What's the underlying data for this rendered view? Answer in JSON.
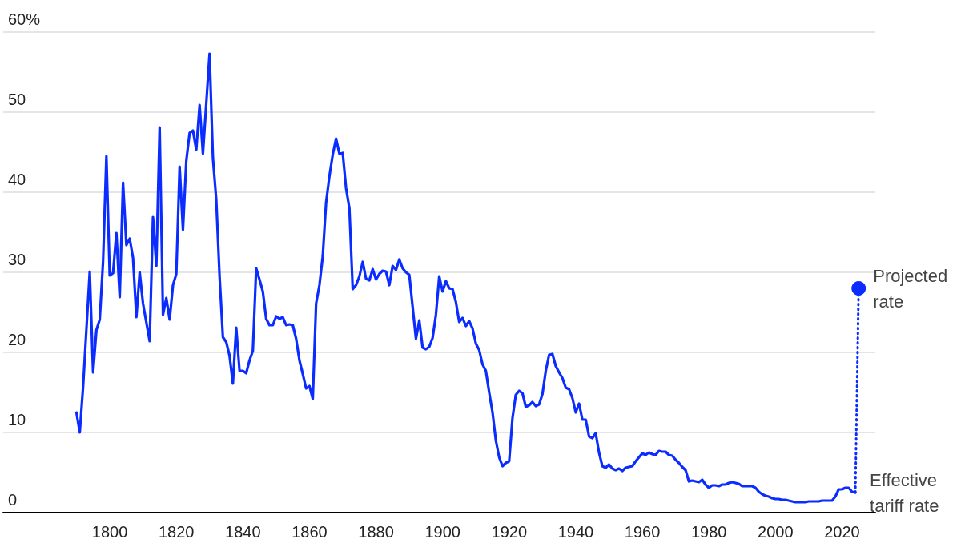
{
  "chart_data": {
    "type": "line",
    "xlim": [
      1768,
      2030
    ],
    "xticks": [
      1800,
      1820,
      1840,
      1860,
      1880,
      1900,
      1920,
      1940,
      1960,
      1980,
      2000,
      2020
    ],
    "ylim": [
      0,
      60
    ],
    "yticks": [
      0,
      10,
      20,
      30,
      40,
      50,
      {
        "value": 60,
        "label": "60%"
      }
    ],
    "grid": "y",
    "legend": false,
    "marker": "none",
    "line_style": "solid",
    "series": [
      {
        "name": "Effective tariff rate",
        "color": "#0a2cff",
        "x": [
          1790,
          1791,
          1792,
          1794,
          1795,
          1796,
          1797,
          1798,
          1799,
          1800,
          1801,
          1802,
          1803,
          1804,
          1805,
          1806,
          1807,
          1808,
          1809,
          1810,
          1812,
          1813,
          1814,
          1815,
          1816,
          1817,
          1818,
          1819,
          1820,
          1821,
          1822,
          1823,
          1824,
          1825,
          1826,
          1827,
          1828,
          1830,
          1831,
          1832,
          1833,
          1834,
          1835,
          1836,
          1837,
          1838,
          1839,
          1840,
          1841,
          1842,
          1843,
          1844,
          1845,
          1846,
          1847,
          1848,
          1849,
          1850,
          1851,
          1852,
          1853,
          1854,
          1855,
          1856,
          1857,
          1858,
          1859,
          1860,
          1861,
          1862,
          1863,
          1864,
          1865,
          1866,
          1867,
          1868,
          1869,
          1870,
          1871,
          1872,
          1873,
          1874,
          1875,
          1876,
          1877,
          1878,
          1879,
          1880,
          1881,
          1882,
          1883,
          1884,
          1885,
          1886,
          1887,
          1888,
          1889,
          1890,
          1891,
          1892,
          1893,
          1894,
          1895,
          1896,
          1897,
          1898,
          1899,
          1900,
          1901,
          1902,
          1903,
          1904,
          1905,
          1906,
          1907,
          1908,
          1909,
          1910,
          1911,
          1912,
          1913,
          1914,
          1915,
          1916,
          1917,
          1918,
          1919,
          1920,
          1921,
          1922,
          1923,
          1924,
          1925,
          1926,
          1927,
          1928,
          1929,
          1930,
          1931,
          1932,
          1933,
          1934,
          1935,
          1936,
          1937,
          1938,
          1939,
          1940,
          1941,
          1942,
          1943,
          1944,
          1945,
          1946,
          1947,
          1948,
          1949,
          1950,
          1951,
          1952,
          1953,
          1954,
          1955,
          1956,
          1957,
          1958,
          1959,
          1960,
          1961,
          1962,
          1963,
          1964,
          1965,
          1966,
          1967,
          1968,
          1969,
          1970,
          1971,
          1972,
          1973,
          1974,
          1975,
          1976,
          1977,
          1978,
          1979,
          1980,
          1981,
          1982,
          1983,
          1984,
          1985,
          1986,
          1987,
          1988,
          1989,
          1990,
          1991,
          1992,
          1993,
          1994,
          1995,
          1996,
          1997,
          1998,
          1999,
          2000,
          2001,
          2002,
          2003,
          2004,
          2005,
          2006,
          2007,
          2008,
          2009,
          2010,
          2011,
          2012,
          2013,
          2014,
          2015,
          2016,
          2017,
          2018,
          2019,
          2020,
          2021,
          2022,
          2023,
          2024
        ],
        "values": [
          12.5,
          10,
          15.7,
          30.1,
          17.5,
          22.8,
          24.1,
          31.4,
          44.5,
          29.6,
          29.9,
          34.9,
          26.9,
          41.2,
          33.4,
          34.2,
          31.8,
          24.4,
          30,
          26.1,
          21.4,
          36.9,
          30.8,
          48.1,
          24.7,
          26.8,
          24.1,
          28.4,
          29.8,
          43.2,
          35.3,
          43.9,
          47.4,
          47.7,
          45.3,
          50.9,
          44.8,
          57.3,
          44.3,
          39.1,
          29.5,
          21.9,
          21.3,
          19.6,
          16.1,
          23.1,
          17.7,
          17.7,
          17.4,
          19,
          20.2,
          30.5,
          29.1,
          27.6,
          24.2,
          23.4,
          23.4,
          24.5,
          24.2,
          24.4,
          23.4,
          23.5,
          23.4,
          21.7,
          19,
          17.3,
          15.5,
          15.8,
          14.2,
          26.1,
          28.4,
          32,
          38.7,
          42,
          44.7,
          46.7,
          44.8,
          44.9,
          40.5,
          38,
          27.9,
          28.4,
          29.5,
          31.3,
          29.2,
          29,
          30.4,
          29.1,
          29.8,
          30.2,
          30.1,
          28.4,
          30.8,
          30.3,
          31.6,
          30.5,
          30,
          29.7,
          25.7,
          21.7,
          24,
          20.6,
          20.4,
          20.7,
          21.8,
          24.7,
          29.5,
          27.6,
          28.9,
          28,
          27.9,
          26.3,
          23.8,
          24.3,
          23.3,
          23.9,
          23,
          21.1,
          20.3,
          18.5,
          17.7,
          15,
          12.5,
          9,
          6.9,
          5.8,
          6.2,
          6.4,
          11.8,
          14.7,
          15.2,
          14.9,
          13.2,
          13.4,
          13.8,
          13.3,
          13.5,
          14.8,
          17.7,
          19.7,
          19.8,
          18.3,
          17.5,
          16.8,
          15.6,
          15.4,
          14.3,
          12.5,
          13.6,
          11.6,
          11.6,
          9.5,
          9.3,
          9.9,
          7.5,
          5.8,
          5.6,
          6,
          5.5,
          5.3,
          5.5,
          5.2,
          5.6,
          5.7,
          5.8,
          6.4,
          6.9,
          7.4,
          7.2,
          7.5,
          7.3,
          7.2,
          7.7,
          7.6,
          7.6,
          7.2,
          7.1,
          6.6,
          6.2,
          5.7,
          5.3,
          3.9,
          4,
          3.9,
          3.8,
          4.1,
          3.5,
          3.1,
          3.4,
          3.4,
          3.3,
          3.5,
          3.5,
          3.7,
          3.8,
          3.7,
          3.6,
          3.3,
          3.3,
          3.3,
          3.3,
          3.1,
          2.6,
          2.3,
          2.1,
          2,
          1.8,
          1.7,
          1.7,
          1.6,
          1.6,
          1.5,
          1.4,
          1.3,
          1.3,
          1.3,
          1.3,
          1.4,
          1.4,
          1.4,
          1.4,
          1.5,
          1.5,
          1.5,
          1.5,
          2,
          2.9,
          2.9,
          3.1,
          3.1,
          2.6,
          2.5
        ]
      },
      {
        "name": "Projected rate",
        "color": "#0a2cff",
        "line_style": "dotted",
        "x": [
          2024,
          2025
        ],
        "values": [
          2.5,
          28
        ]
      },
      {
        "type": "scatter",
        "color": "#0a2cff",
        "marker": "circle",
        "x": [
          2025
        ],
        "values": [
          28
        ]
      }
    ]
  }
}
